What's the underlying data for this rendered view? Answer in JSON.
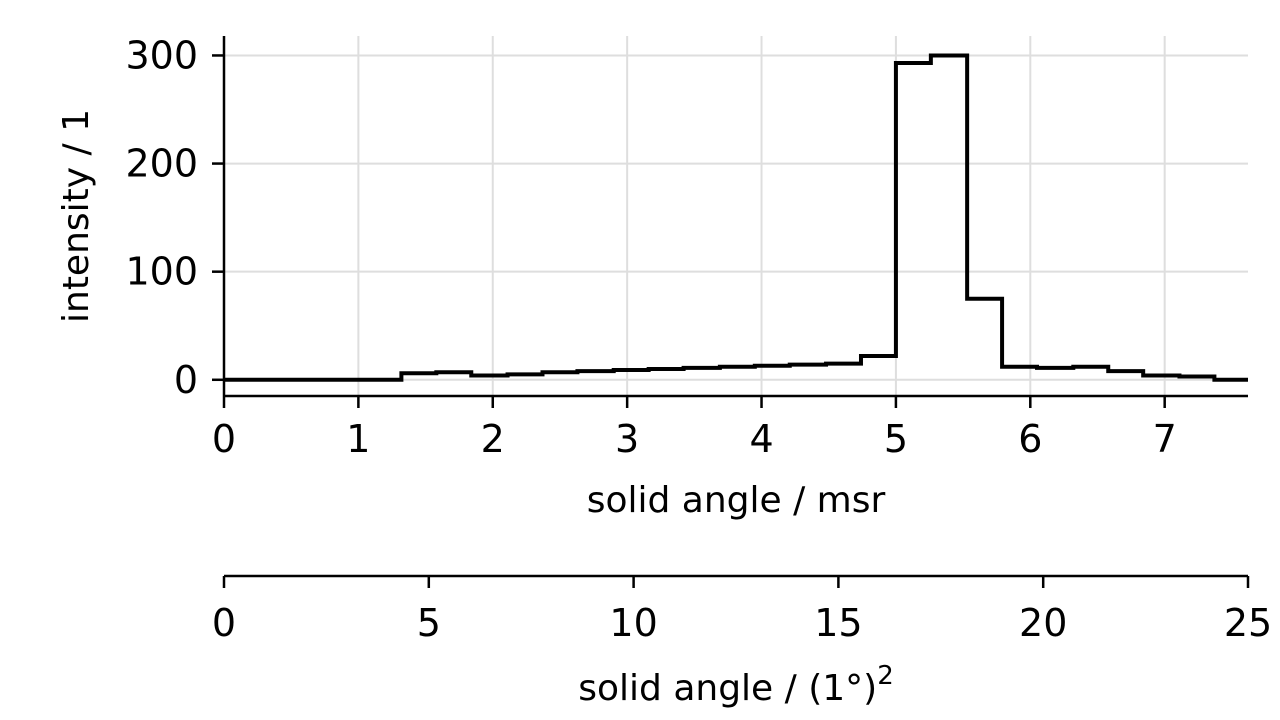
{
  "chart_data": {
    "type": "line",
    "drawstyle": "steps-post",
    "xlabel": "solid angle / msr",
    "ylabel": "intensity / 1",
    "secondary_xlabel": "solid angle / (1°)",
    "secondary_xlabel_superscript": "2",
    "xlim": [
      0,
      7.62
    ],
    "ylim": [
      -15,
      318
    ],
    "secondary_xlim": [
      0,
      25
    ],
    "grid": true,
    "x_ticks": [
      0,
      1,
      2,
      3,
      4,
      5,
      6,
      7
    ],
    "y_ticks": [
      0,
      100,
      200,
      300
    ],
    "secondary_x_ticks": [
      0,
      5,
      10,
      15,
      20,
      25
    ],
    "bin_edges": [
      0.0,
      0.26,
      0.53,
      0.79,
      1.05,
      1.32,
      1.58,
      1.84,
      2.11,
      2.37,
      2.63,
      2.9,
      3.16,
      3.42,
      3.69,
      3.95,
      4.21,
      4.48,
      4.74,
      5.0,
      5.26,
      5.53,
      5.79,
      6.05,
      6.32,
      6.58,
      6.84,
      7.11,
      7.37,
      7.62
    ],
    "series": [
      {
        "values": [
          0,
          0,
          0,
          0,
          0,
          6,
          7,
          4,
          5,
          7,
          8,
          9,
          10,
          11,
          12,
          13,
          14,
          15,
          22,
          293,
          300,
          75,
          12,
          11,
          12,
          8,
          4,
          3,
          0
        ]
      }
    ]
  }
}
